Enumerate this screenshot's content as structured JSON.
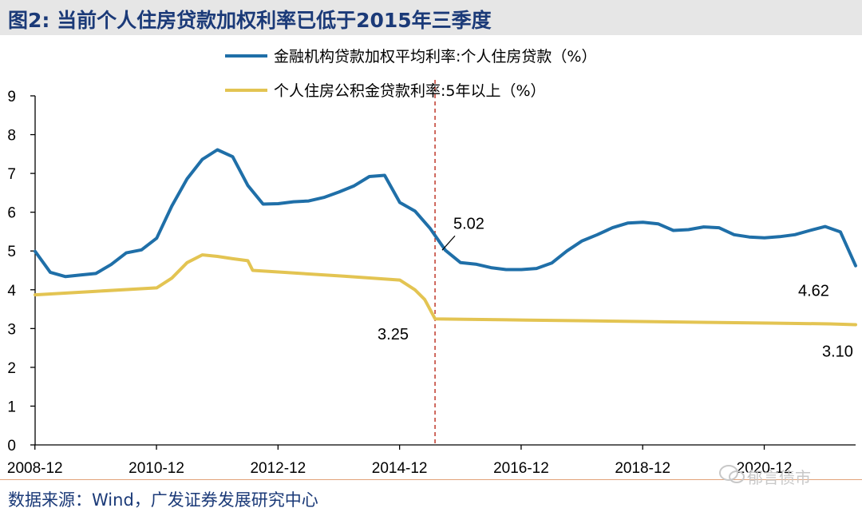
{
  "figure": {
    "title": "图2:  当前个人住房贷款加权利率已低于2015年三季度",
    "source": "数据来源：Wind，广发证券发展研究中心",
    "watermark": "郁言债市"
  },
  "colors": {
    "blue": "#1f6fa8",
    "gold": "#e3c452",
    "marker": "#c0392b",
    "title": "#1b3a78"
  },
  "chart_data": {
    "type": "line",
    "ylim": [
      0,
      9
    ],
    "yticks": [
      "0",
      "1",
      "2",
      "3",
      "4",
      "5",
      "6",
      "7",
      "8",
      "9"
    ],
    "xticks": [
      "2008-12",
      "2010-12",
      "2012-12",
      "2014-12",
      "2016-12",
      "2018-12",
      "2020-12"
    ],
    "vline": 2015.5,
    "series": [
      {
        "name": "金融机构贷款加权平均利率:个人住房贷款（%）",
        "color": "#1f6fa8",
        "x": [
          2008.92,
          2009.17,
          2009.42,
          2009.67,
          2009.92,
          2010.17,
          2010.42,
          2010.67,
          2010.92,
          2011.17,
          2011.42,
          2011.67,
          2011.92,
          2012.17,
          2012.42,
          2012.67,
          2012.92,
          2013.17,
          2013.42,
          2013.67,
          2013.92,
          2014.17,
          2014.42,
          2014.67,
          2014.92,
          2015.17,
          2015.42,
          2015.67,
          2015.92,
          2016.17,
          2016.42,
          2016.67,
          2016.92,
          2017.17,
          2017.42,
          2017.67,
          2017.92,
          2018.17,
          2018.42,
          2018.67,
          2018.92,
          2019.17,
          2019.42,
          2019.67,
          2019.92,
          2020.17,
          2020.42,
          2020.67,
          2020.92,
          2021.17,
          2021.42,
          2021.67,
          2021.92,
          2022.17,
          2022.42
        ],
        "y": [
          4.99,
          4.45,
          4.34,
          4.38,
          4.42,
          4.65,
          4.95,
          5.03,
          5.33,
          6.16,
          6.86,
          7.36,
          7.61,
          7.43,
          6.69,
          6.21,
          6.22,
          6.27,
          6.29,
          6.38,
          6.52,
          6.68,
          6.92,
          6.95,
          6.25,
          6.03,
          5.58,
          5.02,
          4.7,
          4.66,
          4.57,
          4.52,
          4.52,
          4.55,
          4.69,
          5.0,
          5.26,
          5.42,
          5.6,
          5.72,
          5.74,
          5.7,
          5.53,
          5.55,
          5.62,
          5.6,
          5.42,
          5.36,
          5.34,
          5.37,
          5.42,
          5.53,
          5.63,
          5.49,
          4.62
        ]
      },
      {
        "name": "个人住房公积金贷款利率:5年以上（%）",
        "color": "#e3c452",
        "x": [
          2008.92,
          2009.92,
          2010.92,
          2011.17,
          2011.42,
          2011.67,
          2011.92,
          2012.17,
          2012.42,
          2012.5,
          2013.0,
          2014.0,
          2014.92,
          2015.17,
          2015.33,
          2015.5,
          2016.0,
          2017.0,
          2018.0,
          2019.0,
          2020.0,
          2021.0,
          2022.0,
          2022.42
        ],
        "y": [
          3.87,
          3.96,
          4.05,
          4.3,
          4.7,
          4.9,
          4.86,
          4.8,
          4.75,
          4.5,
          4.45,
          4.35,
          4.25,
          4.0,
          3.75,
          3.25,
          3.24,
          3.22,
          3.2,
          3.18,
          3.16,
          3.14,
          3.12,
          3.1
        ]
      }
    ],
    "annotations": [
      {
        "text": "5.02",
        "series": 0,
        "x": 2015.67,
        "y": 5.02
      },
      {
        "text": "4.62",
        "series": 0,
        "x": 2022.42,
        "y": 4.62
      },
      {
        "text": "3.25",
        "series": 1,
        "x": 2015.5,
        "y": 3.25
      },
      {
        "text": "3.10",
        "series": 1,
        "x": 2022.42,
        "y": 3.1
      }
    ]
  }
}
